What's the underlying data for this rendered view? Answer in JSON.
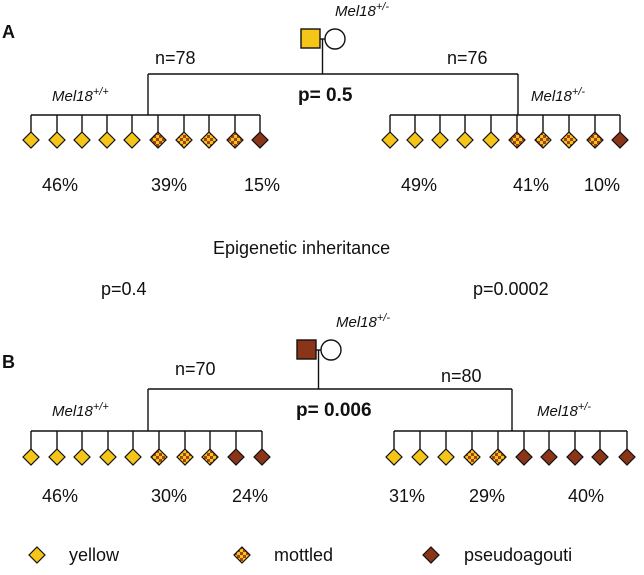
{
  "panels": [
    {
      "letter": "A",
      "parent": {
        "gene": "Mel18",
        "genotype": "+/-",
        "father_phenotype": "yellow"
      },
      "p_value": "p= 0.5",
      "left": {
        "n": "n=78",
        "gene": "Mel18",
        "genotype": "+/+",
        "offspring": [
          "yellow",
          "yellow",
          "yellow",
          "yellow",
          "yellow",
          "mottled",
          "mottled",
          "mottled",
          "mottled",
          "pseudoagouti"
        ],
        "percent_labels": [
          "46%",
          "39%",
          "15%"
        ]
      },
      "right": {
        "n": "n=76",
        "gene": "Mel18",
        "genotype": "+/-",
        "offspring": [
          "yellow",
          "yellow",
          "yellow",
          "yellow",
          "yellow",
          "mottled",
          "mottled",
          "mottled",
          "mottled",
          "pseudoagouti"
        ],
        "percent_labels": [
          "49%",
          "41%",
          "10%"
        ]
      }
    },
    {
      "letter": "B",
      "parent": {
        "gene": "Mel18",
        "genotype": "+/-",
        "father_phenotype": "pseudoagouti"
      },
      "p_value": "p= 0.006",
      "left": {
        "n": "n=70",
        "gene": "Mel18",
        "genotype": "+/+",
        "offspring": [
          "yellow",
          "yellow",
          "yellow",
          "yellow",
          "yellow",
          "mottled",
          "mottled",
          "mottled",
          "pseudoagouti",
          "pseudoagouti"
        ],
        "percent_labels": [
          "46%",
          "30%",
          "24%"
        ]
      },
      "right": {
        "n": "n=80",
        "gene": "Mel18",
        "genotype": "+/-",
        "offspring": [
          "yellow",
          "yellow",
          "yellow",
          "mottled",
          "mottled",
          "pseudoagouti",
          "pseudoagouti",
          "pseudoagouti",
          "pseudoagouti",
          "pseudoagouti"
        ],
        "percent_labels": [
          "31%",
          "29%",
          "40%"
        ]
      }
    }
  ],
  "middle": {
    "title": "Epigenetic inheritance",
    "p_left": "p=0.4",
    "p_right": "p=0.0002"
  },
  "legend": [
    {
      "phenotype": "yellow",
      "label": "yellow"
    },
    {
      "phenotype": "mottled",
      "label": "mottled"
    },
    {
      "phenotype": "pseudoagouti",
      "label": "pseudoagouti"
    }
  ],
  "colors": {
    "yellow": "#f5c518",
    "mottled_base": "#f5c518",
    "mottled_spot": "#a4441c",
    "pseudoagouti": "#8a3418",
    "line": "#111111"
  }
}
